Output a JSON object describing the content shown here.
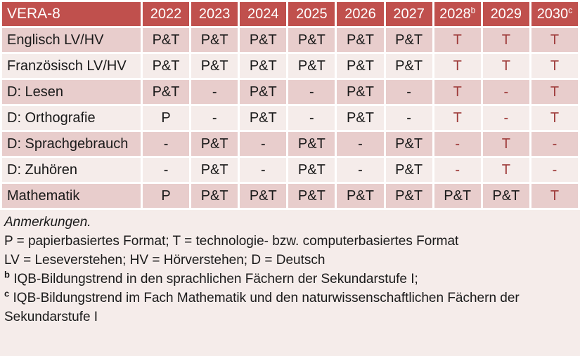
{
  "table": {
    "title": "VERA-8",
    "years": [
      {
        "label": "2022",
        "sup": ""
      },
      {
        "label": "2023",
        "sup": ""
      },
      {
        "label": "2024",
        "sup": ""
      },
      {
        "label": "2025",
        "sup": ""
      },
      {
        "label": "2026",
        "sup": ""
      },
      {
        "label": "2027",
        "sup": ""
      },
      {
        "label": "2028",
        "sup": "b"
      },
      {
        "label": "2029",
        "sup": ""
      },
      {
        "label": "2030",
        "sup": "c"
      }
    ],
    "rows": [
      {
        "label": "Englisch LV/HV",
        "cells": [
          {
            "v": "P&T",
            "red": false
          },
          {
            "v": "P&T",
            "red": false
          },
          {
            "v": "P&T",
            "red": false
          },
          {
            "v": "P&T",
            "red": false
          },
          {
            "v": "P&T",
            "red": false
          },
          {
            "v": "P&T",
            "red": false
          },
          {
            "v": "T",
            "red": true
          },
          {
            "v": "T",
            "red": true
          },
          {
            "v": "T",
            "red": true
          }
        ]
      },
      {
        "label": "Französisch LV/HV",
        "cells": [
          {
            "v": "P&T",
            "red": false
          },
          {
            "v": "P&T",
            "red": false
          },
          {
            "v": "P&T",
            "red": false
          },
          {
            "v": "P&T",
            "red": false
          },
          {
            "v": "P&T",
            "red": false
          },
          {
            "v": "P&T",
            "red": false
          },
          {
            "v": "T",
            "red": true
          },
          {
            "v": "T",
            "red": true
          },
          {
            "v": "T",
            "red": true
          }
        ]
      },
      {
        "label": "D: Lesen",
        "cells": [
          {
            "v": "P&T",
            "red": false
          },
          {
            "v": "-",
            "red": false
          },
          {
            "v": "P&T",
            "red": false
          },
          {
            "v": "-",
            "red": false
          },
          {
            "v": "P&T",
            "red": false
          },
          {
            "v": "-",
            "red": false
          },
          {
            "v": "T",
            "red": true
          },
          {
            "v": "-",
            "red": true
          },
          {
            "v": "T",
            "red": true
          }
        ]
      },
      {
        "label": "D: Orthografie",
        "cells": [
          {
            "v": "P",
            "red": false
          },
          {
            "v": "-",
            "red": false
          },
          {
            "v": "P&T",
            "red": false
          },
          {
            "v": "-",
            "red": false
          },
          {
            "v": "P&T",
            "red": false
          },
          {
            "v": "-",
            "red": false
          },
          {
            "v": "T",
            "red": true
          },
          {
            "v": "-",
            "red": true
          },
          {
            "v": "T",
            "red": true
          }
        ]
      },
      {
        "label": "D: Sprachgebrauch",
        "cells": [
          {
            "v": "-",
            "red": false
          },
          {
            "v": "P&T",
            "red": false
          },
          {
            "v": "-",
            "red": false
          },
          {
            "v": "P&T",
            "red": false
          },
          {
            "v": "-",
            "red": false
          },
          {
            "v": "P&T",
            "red": false
          },
          {
            "v": "-",
            "red": true
          },
          {
            "v": "T",
            "red": true
          },
          {
            "v": "-",
            "red": true
          }
        ]
      },
      {
        "label": "D: Zuhören",
        "cells": [
          {
            "v": "-",
            "red": false
          },
          {
            "v": "P&T",
            "red": false
          },
          {
            "v": "-",
            "red": false
          },
          {
            "v": "P&T",
            "red": false
          },
          {
            "v": "-",
            "red": false
          },
          {
            "v": "P&T",
            "red": false
          },
          {
            "v": "-",
            "red": true
          },
          {
            "v": "T",
            "red": true
          },
          {
            "v": "-",
            "red": true
          }
        ]
      },
      {
        "label": "Mathematik",
        "cells": [
          {
            "v": "P",
            "red": false
          },
          {
            "v": "P&T",
            "red": false
          },
          {
            "v": "P&T",
            "red": false
          },
          {
            "v": "P&T",
            "red": false
          },
          {
            "v": "P&T",
            "red": false
          },
          {
            "v": "P&T",
            "red": false
          },
          {
            "v": "P&T",
            "red": false
          },
          {
            "v": "P&T",
            "red": false
          },
          {
            "v": "T",
            "red": true
          }
        ]
      }
    ]
  },
  "notes": {
    "heading": "Anmerkungen.",
    "formats": "P = papierbasiertes Format; T = technologie- bzw. computerbasiertes Format",
    "abbreviations": "LV = Leseverstehen; HV = Hörverstehen; D = Deutsch",
    "footnote_b_marker": "b",
    "footnote_b_text": "IQB-Bildungstrend in den sprachlichen Fächern der Sekundarstufe I;",
    "footnote_c_marker": "c",
    "footnote_c_text": "IQB-Bildungstrend im Fach Mathematik und den naturwissenschaftlichen Fächern der Sekundarstufe I"
  },
  "colors": {
    "header_bg": "#C0504D",
    "band_dark": "#E8CDCC",
    "band_light": "#F5ECEA",
    "accent_text": "#9E3B3A",
    "header_text": "#FFFFFF"
  }
}
